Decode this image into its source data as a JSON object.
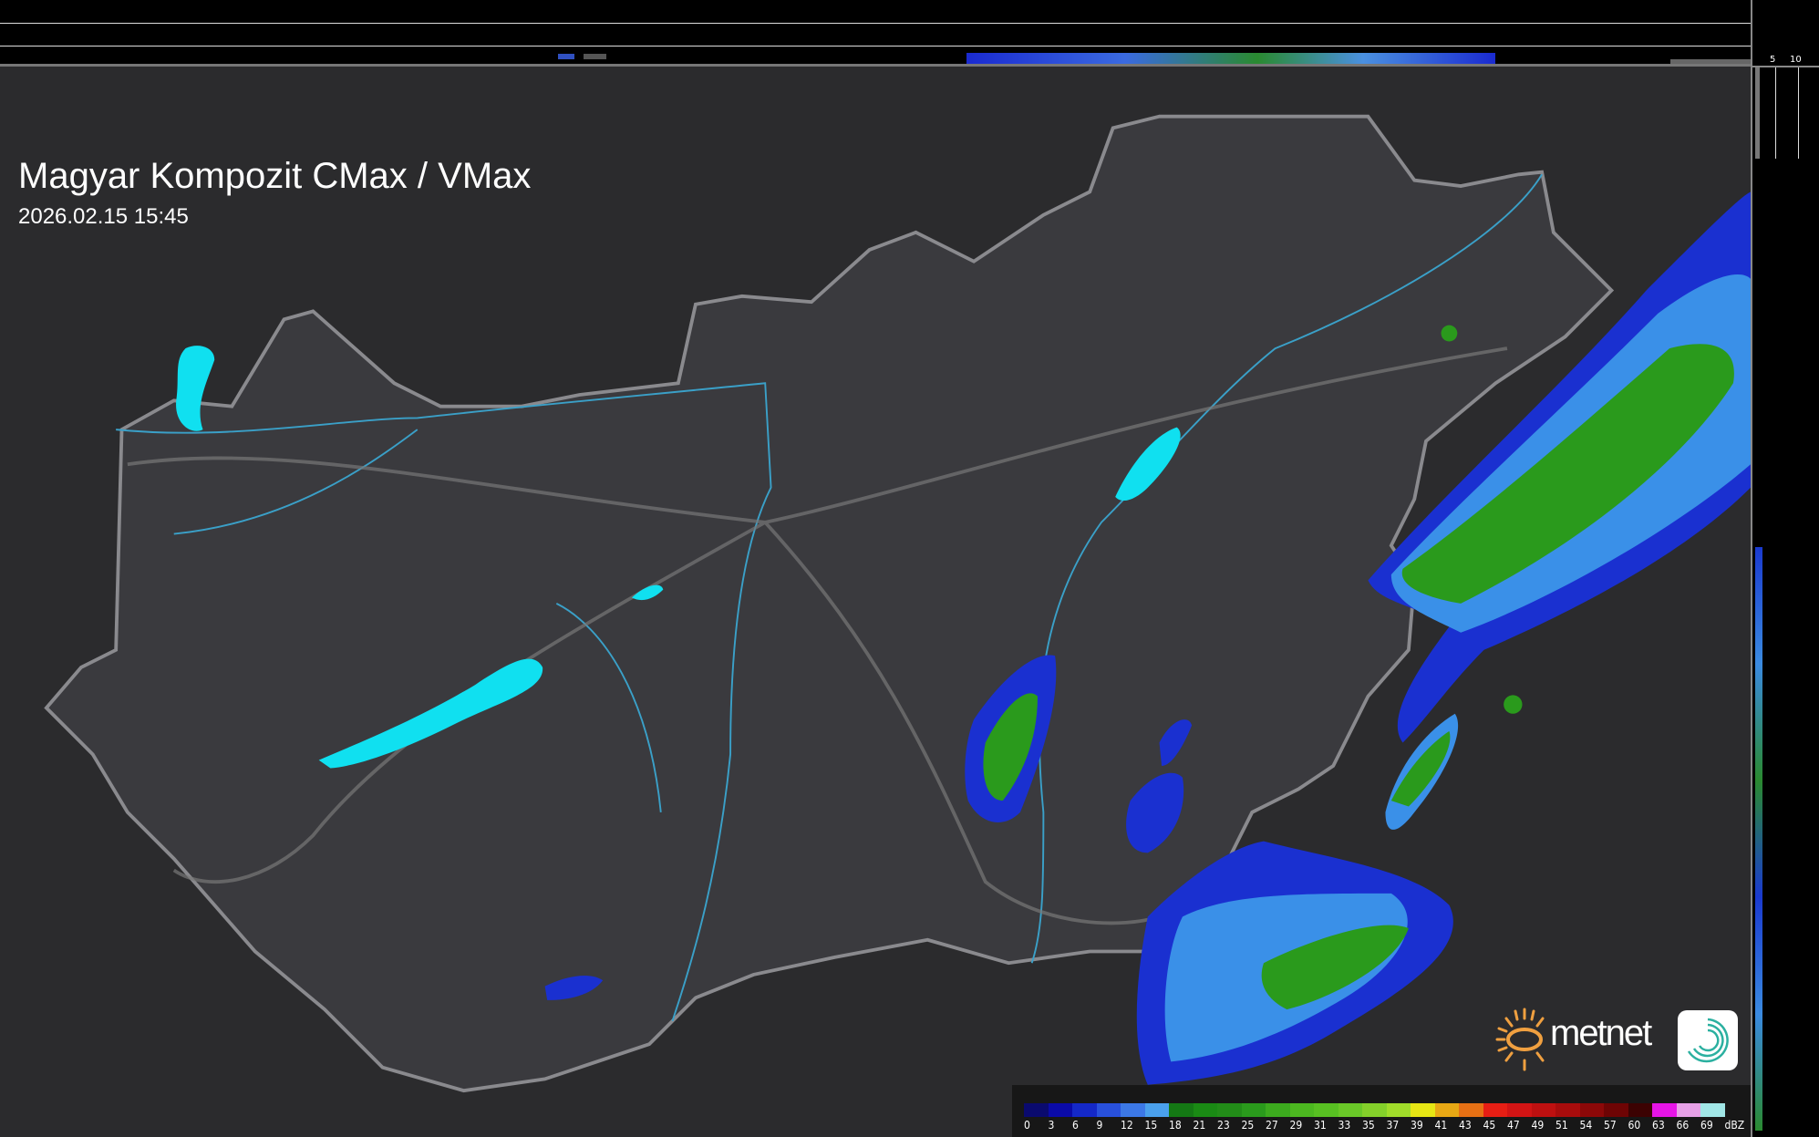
{
  "header": {
    "title": "Magyar Kompozit CMax / VMax",
    "datetime": "2026.02.15 15:45"
  },
  "profile_axes": {
    "top_labels": [
      "10",
      "5"
    ],
    "right_labels": [
      "5",
      "10"
    ]
  },
  "legend": {
    "unit": "dBZ",
    "labels": [
      "0",
      "3",
      "6",
      "9",
      "12",
      "15",
      "18",
      "21",
      "23",
      "25",
      "27",
      "29",
      "31",
      "33",
      "35",
      "37",
      "39",
      "41",
      "43",
      "45",
      "47",
      "49",
      "51",
      "54",
      "57",
      "60",
      "63",
      "66",
      "69"
    ],
    "colors": [
      "#0a0a6e",
      "#0a0aa8",
      "#1428c8",
      "#2850dc",
      "#3c78e6",
      "#4aa0ec",
      "#147814",
      "#1a8a14",
      "#228c18",
      "#2a9a1c",
      "#3caa1e",
      "#4cb820",
      "#58c022",
      "#6ac828",
      "#84d02a",
      "#a0dc2a",
      "#e6e614",
      "#e8a814",
      "#e67014",
      "#e61e14",
      "#d21414",
      "#be1010",
      "#a80c0c",
      "#8c0808",
      "#6e0404",
      "#3c0202",
      "#e614e6",
      "#e6a0e6",
      "#a0e6e6"
    ]
  },
  "brand": {
    "name": "metnet",
    "colors": {
      "sun": "#f0a040",
      "icon": "#2bb0a0"
    }
  }
}
